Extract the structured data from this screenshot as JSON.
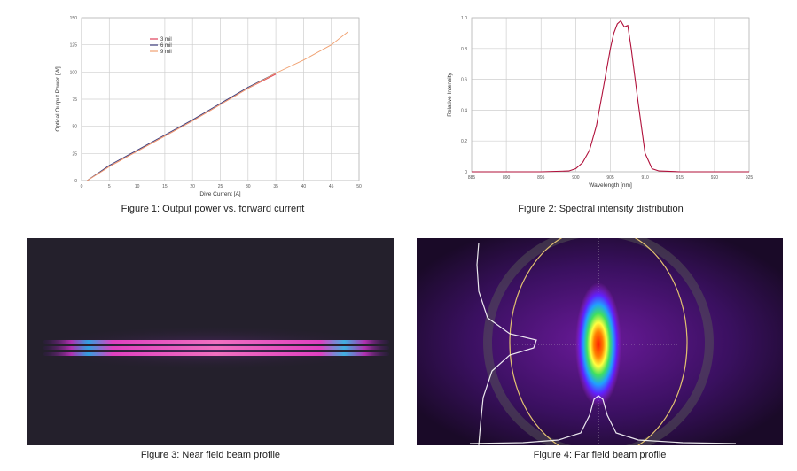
{
  "chart_data": [
    {
      "type": "line",
      "xlabel": "Dive Current [A]",
      "ylabel": "Optical Output Power [W]",
      "xlim": [
        0,
        50
      ],
      "ylim": [
        0,
        150
      ],
      "xticks": [
        "0",
        "5",
        "10",
        "15",
        "20",
        "25",
        "30",
        "35",
        "40",
        "45",
        "50"
      ],
      "yticks": [
        "0",
        "25",
        "50",
        "75",
        "100",
        "125",
        "150"
      ],
      "grid": true,
      "legend_position": "top-left",
      "series": [
        {
          "name": "3 mil",
          "color": "#e0405a",
          "x": [
            1,
            5,
            10,
            15,
            20,
            25,
            30,
            35
          ],
          "y": [
            0,
            13,
            27,
            41,
            55,
            70,
            85,
            98
          ]
        },
        {
          "name": "6 mil",
          "color": "#3a3a7a",
          "x": [
            1,
            5,
            10,
            15,
            20,
            25,
            30,
            35
          ],
          "y": [
            0,
            14,
            28,
            42,
            56,
            71,
            86,
            99
          ]
        },
        {
          "name": "9 mil",
          "color": "#f0a070",
          "x": [
            1,
            5,
            10,
            15,
            20,
            25,
            30,
            35,
            40,
            45,
            48
          ],
          "y": [
            0,
            13,
            27,
            41,
            55,
            70,
            85,
            99,
            111,
            125,
            137
          ]
        }
      ]
    },
    {
      "type": "line",
      "xlabel": "Wavelength [nm]",
      "ylabel": "Relative Intensity",
      "xlim": [
        885,
        925
      ],
      "ylim": [
        0,
        1.0
      ],
      "xticks": [
        "885",
        "890",
        "895",
        "900",
        "905",
        "910",
        "915",
        "920",
        "925"
      ],
      "yticks": [
        "0",
        "0.2",
        "0.4",
        "0.6",
        "0.8",
        "1.0"
      ],
      "grid": true,
      "series": [
        {
          "color": "#b0103a",
          "x": [
            885,
            890,
            895,
            899,
            900,
            901,
            902,
            903,
            904,
            905,
            905.5,
            906,
            906.5,
            907,
            907.5,
            908,
            909,
            910,
            911,
            912,
            915,
            920,
            925
          ],
          "y": [
            0,
            0,
            0,
            0.005,
            0.02,
            0.06,
            0.14,
            0.3,
            0.55,
            0.8,
            0.9,
            0.96,
            0.98,
            0.94,
            0.95,
            0.8,
            0.45,
            0.12,
            0.02,
            0.005,
            0,
            0,
            0
          ]
        }
      ]
    }
  ],
  "captions": {
    "fig1": "Figure 1: Output power vs. forward current",
    "fig2": "Figure 2: Spectral intensity distribution",
    "fig3": "Figure 3: Near field beam profile",
    "fig4": "Figure 4: Far field beam profile"
  }
}
